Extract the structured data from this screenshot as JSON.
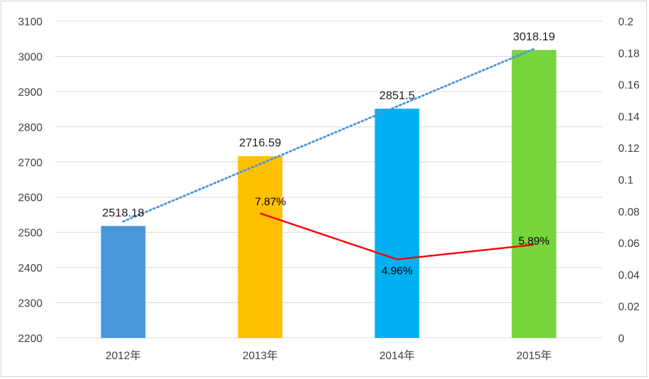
{
  "chart_data": {
    "type": "bar",
    "categories": [
      "2012年",
      "2013年",
      "2014年",
      "2015年"
    ],
    "series": [
      {
        "name": "value",
        "type": "bar",
        "axis": "left",
        "values": [
          2518.18,
          2716.59,
          2851.5,
          3018.19
        ],
        "labels": [
          "2518.18",
          "2716.59",
          "2851.5",
          "3018.19"
        ],
        "colors": [
          "#4A97DB",
          "#FFC000",
          "#00B0F0",
          "#77D43C"
        ]
      },
      {
        "name": "growth",
        "type": "line",
        "axis": "right",
        "values": [
          null,
          0.0787,
          0.0496,
          0.0589
        ],
        "labels": [
          "",
          "7.87%",
          "4.96%",
          "5.89%"
        ],
        "color": "#FF0000"
      },
      {
        "name": "trend",
        "type": "trendline",
        "style": "dotted",
        "axis": "left",
        "color": "#4A97DB"
      }
    ],
    "ylim": [
      2200,
      3100
    ],
    "y_ticks": [
      "2200",
      "2300",
      "2400",
      "2500",
      "2600",
      "2700",
      "2800",
      "2900",
      "3000",
      "3100"
    ],
    "y2lim": [
      0,
      0.2
    ],
    "y2_ticks": [
      "0",
      "0.02",
      "0.04",
      "0.06",
      "0.08",
      "0.1",
      "0.12",
      "0.14",
      "0.16",
      "0.18",
      "0.2"
    ],
    "grid": true,
    "title": "",
    "xlabel": "",
    "ylabel": ""
  }
}
